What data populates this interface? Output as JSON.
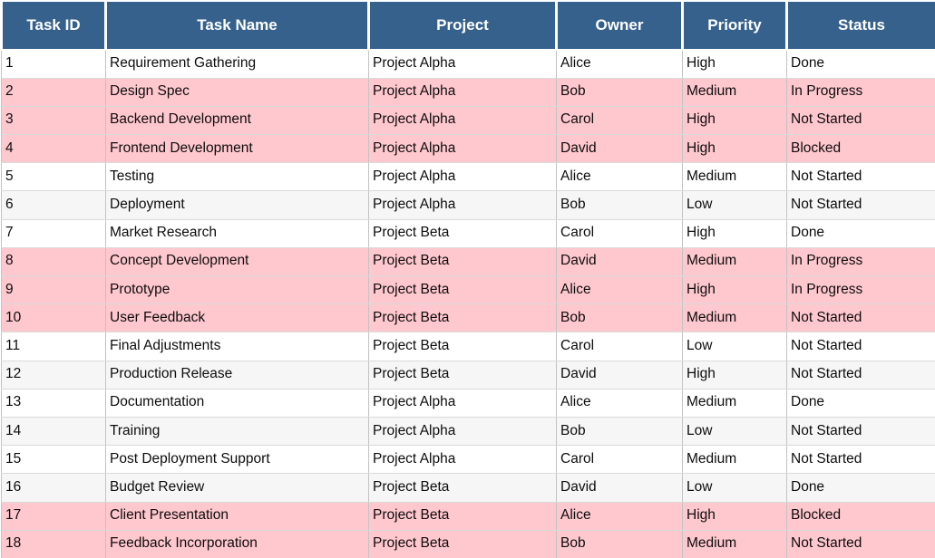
{
  "colors": {
    "header_bg": "#36618C",
    "header_text": "#FFFFFF",
    "row_white": "#FFFFFF",
    "row_gray": "#F6F6F6",
    "row_pink": "#FFC7CE",
    "grid_border": "#C3C3C3"
  },
  "table": {
    "columns": [
      {
        "key": "task_id",
        "label": "Task ID"
      },
      {
        "key": "task_name",
        "label": "Task Name"
      },
      {
        "key": "project",
        "label": "Project"
      },
      {
        "key": "owner",
        "label": "Owner"
      },
      {
        "key": "priority",
        "label": "Priority"
      },
      {
        "key": "status",
        "label": "Status"
      }
    ],
    "rows": [
      {
        "task_id": "1",
        "task_name": "Requirement Gathering",
        "project": "Project Alpha",
        "owner": "Alice",
        "priority": "High",
        "status": "Done",
        "bg": "white"
      },
      {
        "task_id": "2",
        "task_name": "Design Spec",
        "project": "Project Alpha",
        "owner": "Bob",
        "priority": "Medium",
        "status": "In Progress",
        "bg": "pink"
      },
      {
        "task_id": "3",
        "task_name": "Backend Development",
        "project": "Project Alpha",
        "owner": "Carol",
        "priority": "High",
        "status": "Not Started",
        "bg": "pink"
      },
      {
        "task_id": "4",
        "task_name": "Frontend Development",
        "project": "Project Alpha",
        "owner": "David",
        "priority": "High",
        "status": "Blocked",
        "bg": "pink"
      },
      {
        "task_id": "5",
        "task_name": "Testing",
        "project": "Project Alpha",
        "owner": "Alice",
        "priority": "Medium",
        "status": "Not Started",
        "bg": "white"
      },
      {
        "task_id": "6",
        "task_name": "Deployment",
        "project": "Project Alpha",
        "owner": "Bob",
        "priority": "Low",
        "status": "Not Started",
        "bg": "gray"
      },
      {
        "task_id": "7",
        "task_name": "Market Research",
        "project": "Project Beta",
        "owner": "Carol",
        "priority": "High",
        "status": "Done",
        "bg": "white"
      },
      {
        "task_id": "8",
        "task_name": "Concept Development",
        "project": "Project Beta",
        "owner": "David",
        "priority": "Medium",
        "status": "In Progress",
        "bg": "pink"
      },
      {
        "task_id": "9",
        "task_name": "Prototype",
        "project": "Project Beta",
        "owner": "Alice",
        "priority": "High",
        "status": "In Progress",
        "bg": "pink"
      },
      {
        "task_id": "10",
        "task_name": "User Feedback",
        "project": "Project Beta",
        "owner": "Bob",
        "priority": "Medium",
        "status": "Not Started",
        "bg": "pink"
      },
      {
        "task_id": "11",
        "task_name": "Final Adjustments",
        "project": "Project Beta",
        "owner": "Carol",
        "priority": "Low",
        "status": "Not Started",
        "bg": "white"
      },
      {
        "task_id": "12",
        "task_name": "Production Release",
        "project": "Project Beta",
        "owner": "David",
        "priority": "High",
        "status": "Not Started",
        "bg": "gray"
      },
      {
        "task_id": "13",
        "task_name": "Documentation",
        "project": "Project Alpha",
        "owner": "Alice",
        "priority": "Medium",
        "status": "Done",
        "bg": "white"
      },
      {
        "task_id": "14",
        "task_name": "Training",
        "project": "Project Alpha",
        "owner": "Bob",
        "priority": "Low",
        "status": "Not Started",
        "bg": "gray"
      },
      {
        "task_id": "15",
        "task_name": "Post Deployment Support",
        "project": "Project Alpha",
        "owner": "Carol",
        "priority": "Medium",
        "status": "Not Started",
        "bg": "white"
      },
      {
        "task_id": "16",
        "task_name": "Budget Review",
        "project": "Project Beta",
        "owner": "David",
        "priority": "Low",
        "status": "Done",
        "bg": "gray"
      },
      {
        "task_id": "17",
        "task_name": "Client Presentation",
        "project": "Project Beta",
        "owner": "Alice",
        "priority": "High",
        "status": "Blocked",
        "bg": "pink"
      },
      {
        "task_id": "18",
        "task_name": "Feedback Incorporation",
        "project": "Project Beta",
        "owner": "Bob",
        "priority": "Medium",
        "status": "Not Started",
        "bg": "pink"
      }
    ]
  }
}
